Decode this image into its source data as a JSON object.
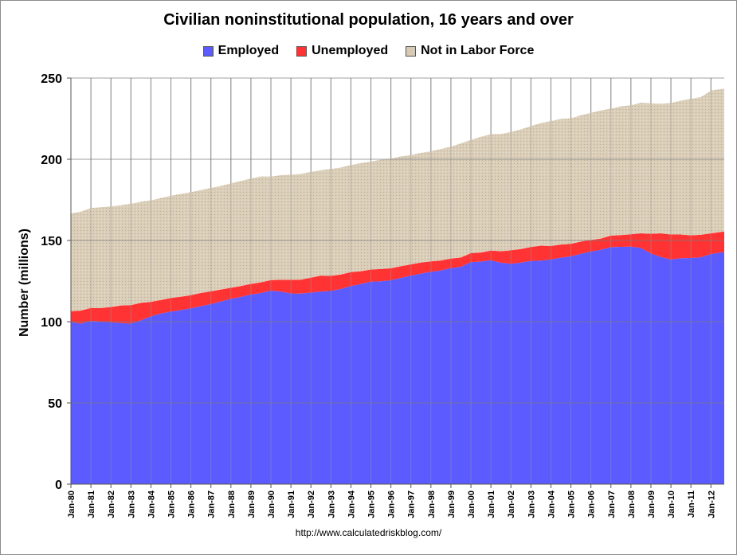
{
  "chart_data": {
    "type": "area",
    "stacked": true,
    "title": "Civilian noninstitutional population, 16 years and over",
    "ylabel": "Number (millions)",
    "xlabel": "",
    "ylim": [
      0,
      250
    ],
    "yticks": [
      0,
      50,
      100,
      150,
      200,
      250
    ],
    "xlim": [
      "1980-01",
      "2012-09"
    ],
    "xticks": [
      "Jan-80",
      "Jan-81",
      "Jan-82",
      "Jan-83",
      "Jan-84",
      "Jan-85",
      "Jan-86",
      "Jan-87",
      "Jan-88",
      "Jan-89",
      "Jan-90",
      "Jan-91",
      "Jan-92",
      "Jan-93",
      "Jan-94",
      "Jan-95",
      "Jan-96",
      "Jan-97",
      "Jan-98",
      "Jan-99",
      "Jan-00",
      "Jan-01",
      "Jan-02",
      "Jan-03",
      "Jan-04",
      "Jan-05",
      "Jan-06",
      "Jan-07",
      "Jan-08",
      "Jan-09",
      "Jan-10",
      "Jan-11",
      "Jan-12"
    ],
    "grid": {
      "vertical": true,
      "horizontal": true
    },
    "legend_position": "top",
    "x": [
      "1980-01",
      "1980-07",
      "1981-01",
      "1981-07",
      "1982-01",
      "1982-07",
      "1983-01",
      "1983-07",
      "1984-01",
      "1984-07",
      "1985-01",
      "1985-07",
      "1986-01",
      "1986-07",
      "1987-01",
      "1987-07",
      "1988-01",
      "1988-07",
      "1989-01",
      "1989-07",
      "1990-01",
      "1990-07",
      "1991-01",
      "1991-07",
      "1992-01",
      "1992-07",
      "1993-01",
      "1993-07",
      "1994-01",
      "1994-07",
      "1995-01",
      "1995-07",
      "1996-01",
      "1996-07",
      "1997-01",
      "1997-07",
      "1998-01",
      "1998-07",
      "1999-01",
      "1999-07",
      "2000-01",
      "2000-07",
      "2001-01",
      "2001-07",
      "2002-01",
      "2002-07",
      "2003-01",
      "2003-07",
      "2004-01",
      "2004-07",
      "2005-01",
      "2005-07",
      "2006-01",
      "2006-07",
      "2007-01",
      "2007-07",
      "2008-01",
      "2008-07",
      "2009-01",
      "2009-07",
      "2010-01",
      "2010-07",
      "2011-01",
      "2011-07",
      "2012-01",
      "2012-09"
    ],
    "series": [
      {
        "name": "Employed",
        "color": "#5b5bff",
        "values": [
          99.9,
          98.8,
          100.5,
          100.2,
          99.6,
          99.2,
          98.8,
          100.8,
          103.2,
          105.0,
          106.2,
          107.1,
          108.2,
          109.5,
          110.8,
          112.4,
          114.0,
          115.2,
          116.7,
          117.6,
          119.1,
          118.6,
          117.4,
          117.3,
          117.9,
          118.6,
          118.9,
          120.1,
          121.9,
          123.2,
          124.6,
          124.9,
          125.5,
          126.9,
          128.3,
          129.6,
          130.7,
          131.5,
          133.0,
          133.7,
          136.6,
          137.0,
          137.8,
          136.3,
          135.7,
          136.3,
          137.4,
          137.6,
          138.3,
          139.4,
          140.2,
          141.8,
          143.2,
          144.2,
          145.9,
          146.1,
          146.2,
          145.5,
          142.1,
          139.9,
          138.3,
          139.1,
          139.2,
          139.6,
          141.6,
          142.9
        ]
      },
      {
        "name": "Unemployed",
        "color": "#ff3333",
        "values": [
          6.5,
          8.0,
          8.0,
          8.2,
          9.4,
          10.8,
          11.4,
          10.8,
          9.0,
          8.4,
          8.4,
          8.3,
          8.1,
          8.2,
          7.9,
          7.4,
          6.9,
          6.7,
          6.6,
          6.6,
          6.5,
          7.2,
          8.4,
          8.6,
          9.2,
          9.8,
          9.3,
          8.9,
          8.6,
          7.9,
          7.5,
          7.5,
          7.4,
          7.2,
          7.0,
          6.8,
          6.4,
          6.2,
          5.8,
          5.8,
          5.6,
          5.6,
          6.0,
          7.1,
          8.2,
          8.4,
          8.6,
          9.2,
          8.3,
          8.1,
          7.7,
          7.5,
          7.1,
          7.0,
          7.1,
          7.2,
          7.6,
          8.9,
          12.0,
          14.5,
          15.4,
          14.6,
          14.0,
          13.9,
          12.8,
          12.6
        ]
      },
      {
        "name": "Not in Labor Force",
        "color": "#d8cbb5",
        "values": [
          60.2,
          61.0,
          61.5,
          62.1,
          62.0,
          61.7,
          62.4,
          62.2,
          62.5,
          62.7,
          62.9,
          63.3,
          63.4,
          63.4,
          63.6,
          63.8,
          64.2,
          64.7,
          64.8,
          65.2,
          63.7,
          64.4,
          64.7,
          65.1,
          65.1,
          64.9,
          65.8,
          65.9,
          65.9,
          66.5,
          66.5,
          67.3,
          67.5,
          67.6,
          67.3,
          67.5,
          67.8,
          68.6,
          68.9,
          70.3,
          69.7,
          71.2,
          71.6,
          72.1,
          72.9,
          73.7,
          74.4,
          75.5,
          76.9,
          77.4,
          77.3,
          77.8,
          78.3,
          78.9,
          78.2,
          79.3,
          79.4,
          80.4,
          80.3,
          79.8,
          80.9,
          82.4,
          84.0,
          84.8,
          87.9,
          88.0
        ]
      }
    ]
  },
  "source": "http://www.calculatedriskblog.com/"
}
